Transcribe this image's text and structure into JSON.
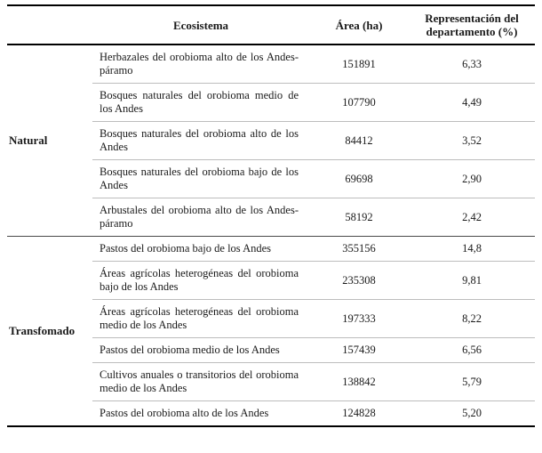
{
  "table": {
    "headers": {
      "ecosystem": "Ecosistema",
      "area": "Área (ha)",
      "representation": "Representación del departamento (%)"
    },
    "groups": [
      {
        "label": "Natural",
        "rows": [
          {
            "ecosystem": "Herbazales del orobioma alto de los Andes-páramo",
            "area": "151891",
            "representation": "6,33"
          },
          {
            "ecosystem": "Bosques naturales del orobioma medio de los Andes",
            "area": "107790",
            "representation": "4,49"
          },
          {
            "ecosystem": "Bosques naturales del orobioma alto de los Andes",
            "area": "84412",
            "representation": "3,52"
          },
          {
            "ecosystem": "Bosques naturales del orobioma bajo de los Andes",
            "area": "69698",
            "representation": "2,90"
          },
          {
            "ecosystem": "Arbustales del orobioma alto de los Andes-páramo",
            "area": "58192",
            "representation": "2,42"
          }
        ]
      },
      {
        "label": "Transfomado",
        "rows": [
          {
            "ecosystem": "Pastos del orobioma bajo de los Andes",
            "area": "355156",
            "representation": "14,8"
          },
          {
            "ecosystem": "Áreas agrícolas heterogéneas del orobioma bajo de los Andes",
            "area": "235308",
            "representation": "9,81"
          },
          {
            "ecosystem": "Áreas agrícolas heterogéneas del orobioma medio de los Andes",
            "area": "197333",
            "representation": "8,22"
          },
          {
            "ecosystem": "Pastos del orobioma medio de los Andes",
            "area": "157439",
            "representation": "6,56"
          },
          {
            "ecosystem": "Cultivos anuales o transitorios del orobioma medio de los Andes",
            "area": "138842",
            "representation": "5,79"
          },
          {
            "ecosystem": "Pastos del orobioma alto de los Andes",
            "area": "124828",
            "representation": "5,20"
          }
        ]
      }
    ]
  }
}
